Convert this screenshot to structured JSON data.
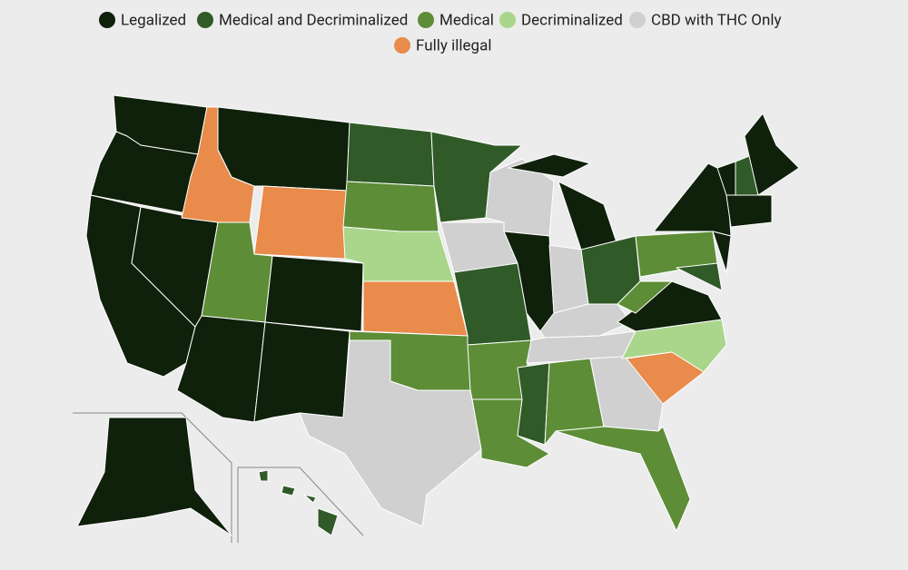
{
  "legend": {
    "items": [
      {
        "label": "Legalized",
        "color": "#0f200b"
      },
      {
        "label": "Medical and Decriminalized",
        "color": "#305a27"
      },
      {
        "label": "Medical",
        "color": "#5d8d37"
      },
      {
        "label": "Decriminalized",
        "color": "#a9d68b"
      },
      {
        "label": "CBD with THC Only",
        "color": "#d0d0d0"
      },
      {
        "label": "Fully illegal",
        "color": "#e88b4b"
      }
    ]
  }
}
